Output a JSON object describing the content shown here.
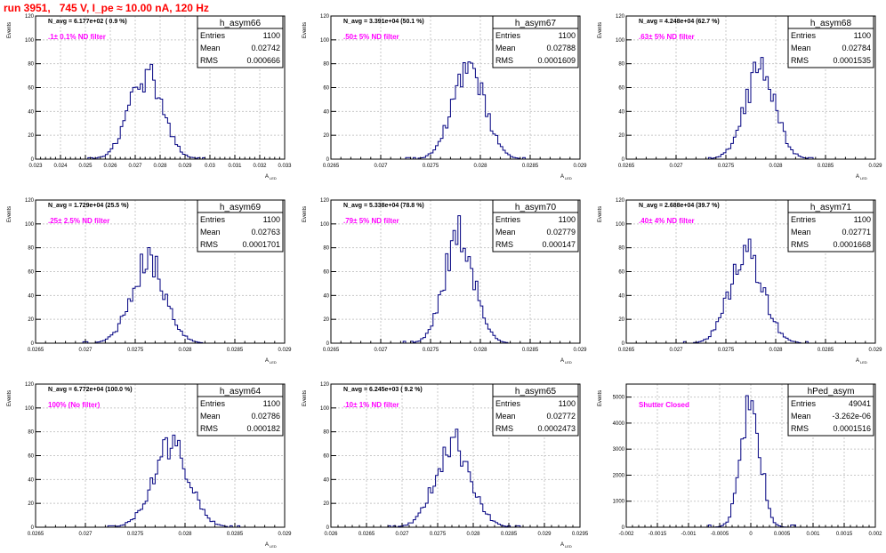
{
  "page_title": "run 3951,   745 V, I_pe ≈ 10.00 nA, 120 Hz",
  "colors": {
    "title": "#ff0000",
    "histogram": "#000080",
    "annotation": "#ff00ff",
    "grid": "#c8c8c8"
  },
  "chart_data": [
    {
      "type": "histogram",
      "name": "h_asym66",
      "navg": "N_avg = 6.177e+02 ( 0.9 %)",
      "filter": ".1± 0.1% ND filter",
      "stats": {
        "entries": "1100",
        "mean": "0.02742",
        "rms": "0.000666"
      },
      "ylabel": "Events",
      "xlabel": "A_LED",
      "xlim": [
        0.023,
        0.033
      ],
      "ylim": [
        0,
        120
      ],
      "xticks": [
        "0.023",
        "0.024",
        "0.025",
        "0.026",
        "0.027",
        "0.028",
        "0.029",
        "0.03",
        "0.031",
        "0.032",
        "0.033"
      ],
      "yticks": [
        "0",
        "20",
        "40",
        "60",
        "80",
        "100",
        "120"
      ],
      "peak": {
        "center": 0.02742,
        "sigma": 0.000666,
        "height": 72
      }
    },
    {
      "type": "histogram",
      "name": "h_asym67",
      "navg": "N_avg = 3.391e+04 (50.1 %)",
      "filter": ".50± 5% ND filter",
      "stats": {
        "entries": "1100",
        "mean": "0.02788",
        "rms": "0.0001609"
      },
      "ylabel": "Events",
      "xlabel": "A_LED",
      "xlim": [
        0.0265,
        0.029
      ],
      "ylim": [
        0,
        120
      ],
      "xticks": [
        "0.0265",
        "0.027",
        "0.0275",
        "0.028",
        "0.0285",
        "0.029"
      ],
      "yticks": [
        "0",
        "20",
        "40",
        "60",
        "80",
        "100",
        "120"
      ],
      "peak": {
        "center": 0.02788,
        "sigma": 0.0001609,
        "height": 80
      }
    },
    {
      "type": "histogram",
      "name": "h_asym68",
      "navg": "N_avg = 4.248e+04 (62.7 %)",
      "filter": ".63± 5% ND filter",
      "stats": {
        "entries": "1100",
        "mean": "0.02784",
        "rms": "0.0001535"
      },
      "ylabel": "Events",
      "xlabel": "A_LED",
      "xlim": [
        0.0265,
        0.029
      ],
      "ylim": [
        0,
        120
      ],
      "xticks": [
        "0.0265",
        "0.027",
        "0.0275",
        "0.028",
        "0.0285",
        "0.029"
      ],
      "yticks": [
        "0",
        "20",
        "40",
        "60",
        "80",
        "100",
        "120"
      ],
      "peak": {
        "center": 0.02784,
        "sigma": 0.0001535,
        "height": 76
      }
    },
    {
      "type": "histogram",
      "name": "h_asym69",
      "navg": "N_avg = 1.729e+04 (25.5 %)",
      "filter": ".25± 2.5% ND filter",
      "stats": {
        "entries": "1100",
        "mean": "0.02763",
        "rms": "0.0001701"
      },
      "ylabel": "Events",
      "xlabel": "A_LED",
      "xlim": [
        0.0265,
        0.029
      ],
      "ylim": [
        0,
        120
      ],
      "xticks": [
        "0.0265",
        "0.027",
        "0.0275",
        "0.028",
        "0.0285",
        "0.029"
      ],
      "yticks": [
        "0",
        "20",
        "40",
        "60",
        "80",
        "100",
        "120"
      ],
      "peak": {
        "center": 0.02763,
        "sigma": 0.0001701,
        "height": 70
      }
    },
    {
      "type": "histogram",
      "name": "h_asym70",
      "navg": "N_avg = 5.338e+04 (78.8 %)",
      "filter": ".79± 5% ND filter",
      "stats": {
        "entries": "1100",
        "mean": "0.02779",
        "rms": "0.000147"
      },
      "ylabel": "Events",
      "xlabel": "A_LED",
      "xlim": [
        0.0265,
        0.029
      ],
      "ylim": [
        0,
        120
      ],
      "xticks": [
        "0.0265",
        "0.027",
        "0.0275",
        "0.028",
        "0.0285",
        "0.029"
      ],
      "yticks": [
        "0",
        "20",
        "40",
        "60",
        "80",
        "100",
        "120"
      ],
      "peak": {
        "center": 0.02779,
        "sigma": 0.000147,
        "height": 93
      }
    },
    {
      "type": "histogram",
      "name": "h_asym71",
      "navg": "N_avg = 2.688e+04 (39.7 %)",
      "filter": ".40± 4% ND filter",
      "stats": {
        "entries": "1100",
        "mean": "0.02771",
        "rms": "0.0001668"
      },
      "ylabel": "Events",
      "xlabel": "A_LED",
      "xlim": [
        0.0265,
        0.029
      ],
      "ylim": [
        0,
        120
      ],
      "xticks": [
        "0.0265",
        "0.027",
        "0.0275",
        "0.028",
        "0.0285",
        "0.029"
      ],
      "yticks": [
        "0",
        "20",
        "40",
        "60",
        "80",
        "100",
        "120"
      ],
      "peak": {
        "center": 0.02771,
        "sigma": 0.0001668,
        "height": 78
      }
    },
    {
      "type": "histogram",
      "name": "h_asym64",
      "navg": "N_avg = 6.772e+04 (100.0 %)",
      "filter": "100% (No filter)",
      "stats": {
        "entries": "1100",
        "mean": "0.02786",
        "rms": "0.000182"
      },
      "ylabel": "Events",
      "xlabel": "A_LED",
      "xlim": [
        0.0265,
        0.029
      ],
      "ylim": [
        0,
        120
      ],
      "xticks": [
        "0.0265",
        "0.027",
        "0.0275",
        "0.028",
        "0.0285",
        "0.029"
      ],
      "yticks": [
        "0",
        "20",
        "40",
        "60",
        "80",
        "100",
        "120"
      ],
      "peak": {
        "center": 0.02786,
        "sigma": 0.000182,
        "height": 70
      }
    },
    {
      "type": "histogram",
      "name": "h_asym65",
      "navg": "N_avg = 6.245e+03 ( 9.2 %)",
      "filter": ".10± 1% ND filter",
      "stats": {
        "entries": "1100",
        "mean": "0.02772",
        "rms": "0.0002473"
      },
      "ylabel": "Events",
      "xlabel": "A_LED",
      "xlim": [
        0.026,
        0.0295
      ],
      "ylim": [
        0,
        120
      ],
      "xticks": [
        "0.026",
        "0.0265",
        "0.027",
        "0.0275",
        "0.028",
        "0.0285",
        "0.029",
        "0.0295"
      ],
      "yticks": [
        "0",
        "20",
        "40",
        "60",
        "80",
        "100",
        "120"
      ],
      "peak": {
        "center": 0.02772,
        "sigma": 0.0002473,
        "height": 72
      }
    },
    {
      "type": "histogram",
      "name": "hPed_asym",
      "navg": "",
      "filter": "Shutter Closed",
      "stats": {
        "entries": "49041",
        "mean": "-3.262e-06",
        "rms": "0.0001516"
      },
      "ylabel": "Events",
      "xlabel": "",
      "xlim": [
        -0.002,
        0.002
      ],
      "ylim": [
        0,
        5500
      ],
      "xticks": [
        "-0.002",
        "-0.0015",
        "-0.001",
        "-0.0005",
        "0",
        "0.0005",
        "0.001",
        "0.0015",
        "0.002"
      ],
      "yticks": [
        "0",
        "1000",
        "2000",
        "3000",
        "4000",
        "5000"
      ],
      "peak": {
        "center": -3.26e-06,
        "sigma": 0.0001516,
        "height": 5200
      }
    }
  ]
}
